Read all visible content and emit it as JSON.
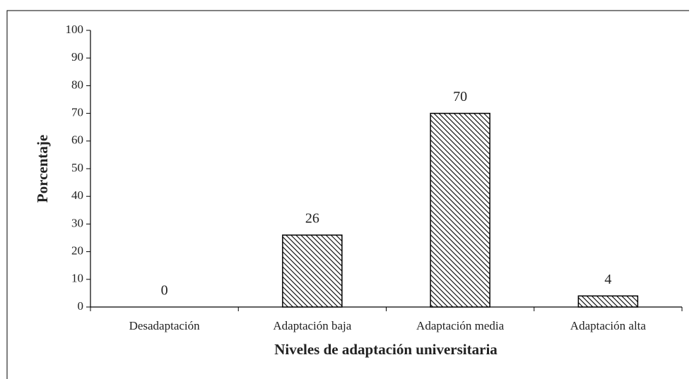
{
  "chart_data": {
    "type": "bar",
    "categories": [
      "Desadaptación",
      "Adaptación baja",
      "Adaptación media",
      "Adaptación alta"
    ],
    "values": [
      0,
      26,
      70,
      4
    ],
    "xlabel": "Niveles de adaptación universitaria",
    "ylabel": "Porcentaje",
    "ylim": [
      0,
      100
    ],
    "yticks": [
      0,
      10,
      20,
      30,
      40,
      50,
      60,
      70,
      80,
      90,
      100
    ],
    "grid": false,
    "color": "#000000"
  }
}
